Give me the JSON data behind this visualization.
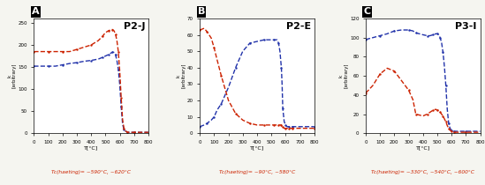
{
  "panels": [
    {
      "label": "A",
      "title": "P2-J",
      "ylabel": "k\n[arbitrary]",
      "ylim": [
        0,
        260
      ],
      "yticks": [
        0,
        50,
        100,
        150,
        200,
        250
      ],
      "tc_text": "Tc(haeting)= ~590°C, ~620°C",
      "heating": {
        "x": [
          0,
          50,
          100,
          150,
          200,
          250,
          300,
          350,
          400,
          450,
          480,
          500,
          520,
          540,
          550,
          560,
          570,
          580,
          590,
          600,
          610,
          620,
          630,
          640,
          650,
          660,
          700,
          800
        ],
        "y": [
          185,
          185,
          185,
          185,
          185,
          185,
          190,
          195,
          200,
          210,
          220,
          228,
          232,
          235,
          235,
          232,
          225,
          210,
          185,
          140,
          80,
          30,
          10,
          5,
          3,
          2,
          2,
          2
        ]
      },
      "cooling": {
        "x": [
          0,
          50,
          100,
          150,
          200,
          250,
          300,
          350,
          400,
          450,
          480,
          500,
          520,
          540,
          550,
          560,
          570,
          580,
          590,
          600,
          610,
          620,
          630,
          640,
          650,
          660,
          700,
          800
        ],
        "y": [
          152,
          152,
          152,
          152,
          155,
          158,
          160,
          163,
          165,
          168,
          172,
          175,
          178,
          182,
          184,
          183,
          178,
          165,
          145,
          110,
          60,
          20,
          8,
          5,
          3,
          2,
          2,
          2
        ]
      }
    },
    {
      "label": "B",
      "title": "P2-E",
      "ylabel": "k\n[arbitrary]",
      "ylim": [
        0,
        70
      ],
      "yticks": [
        0,
        10,
        20,
        30,
        40,
        50,
        60,
        70
      ],
      "tc_text": "Tc(haeting)= ~90°C, ~580°C",
      "heating": {
        "x": [
          0,
          30,
          50,
          80,
          100,
          120,
          150,
          200,
          250,
          300,
          350,
          400,
          450,
          500,
          520,
          540,
          550,
          560,
          570,
          575,
          580,
          590,
          600,
          610,
          620,
          630,
          650,
          700,
          800
        ],
        "y": [
          63,
          64,
          62,
          58,
          52,
          45,
          35,
          20,
          12,
          8,
          6,
          5,
          5,
          5,
          5,
          5,
          5,
          5,
          5,
          4,
          4,
          3,
          3,
          3,
          3,
          3,
          3,
          3,
          3
        ]
      },
      "cooling": {
        "x": [
          0,
          30,
          50,
          80,
          100,
          120,
          150,
          200,
          250,
          300,
          350,
          400,
          450,
          500,
          520,
          540,
          550,
          560,
          570,
          575,
          580,
          590,
          600,
          610,
          620,
          630,
          650,
          700,
          800
        ],
        "y": [
          4,
          5,
          6,
          8,
          10,
          14,
          18,
          28,
          40,
          50,
          55,
          56,
          57,
          57,
          57,
          57,
          55,
          50,
          40,
          30,
          15,
          7,
          5,
          4,
          4,
          4,
          4,
          4,
          4
        ]
      }
    },
    {
      "label": "C",
      "title": "P3-I",
      "ylabel": "k\n[arbitrary]",
      "ylim": [
        0,
        120
      ],
      "yticks": [
        0,
        20,
        40,
        60,
        80,
        100,
        120
      ],
      "tc_text": "Tc(haeting)= ~330°C, ~540°C, ~600°C",
      "heating": {
        "x": [
          0,
          50,
          100,
          150,
          200,
          250,
          300,
          330,
          350,
          400,
          430,
          450,
          470,
          490,
          500,
          510,
          520,
          530,
          540,
          550,
          560,
          570,
          580,
          590,
          600,
          610,
          620,
          650,
          700,
          800
        ],
        "y": [
          42,
          50,
          62,
          68,
          65,
          55,
          45,
          35,
          20,
          18,
          20,
          22,
          24,
          25,
          24,
          24,
          22,
          20,
          18,
          15,
          12,
          8,
          5,
          3,
          2,
          1,
          1,
          1,
          1,
          1
        ]
      },
      "cooling": {
        "x": [
          0,
          50,
          100,
          150,
          200,
          250,
          300,
          330,
          350,
          400,
          430,
          450,
          470,
          490,
          500,
          510,
          520,
          530,
          540,
          550,
          560,
          570,
          580,
          590,
          600,
          610,
          620,
          650,
          700,
          800
        ],
        "y": [
          98,
          100,
          102,
          104,
          107,
          108,
          108,
          107,
          105,
          103,
          102,
          102,
          103,
          104,
          104,
          103,
          100,
          95,
          85,
          70,
          50,
          25,
          10,
          5,
          3,
          2,
          2,
          2,
          2,
          2
        ]
      }
    }
  ],
  "heating_color": "#cc2200",
  "cooling_color": "#2233aa",
  "tc_color": "#cc2200",
  "bg_color": "#f5f5f0",
  "panel_bg": "#ffffff",
  "border_color": "#000000",
  "xlabel": "T[°C]",
  "xlim": [
    0,
    800
  ],
  "xticks": [
    0,
    100,
    200,
    300,
    400,
    500,
    600,
    700,
    800
  ]
}
